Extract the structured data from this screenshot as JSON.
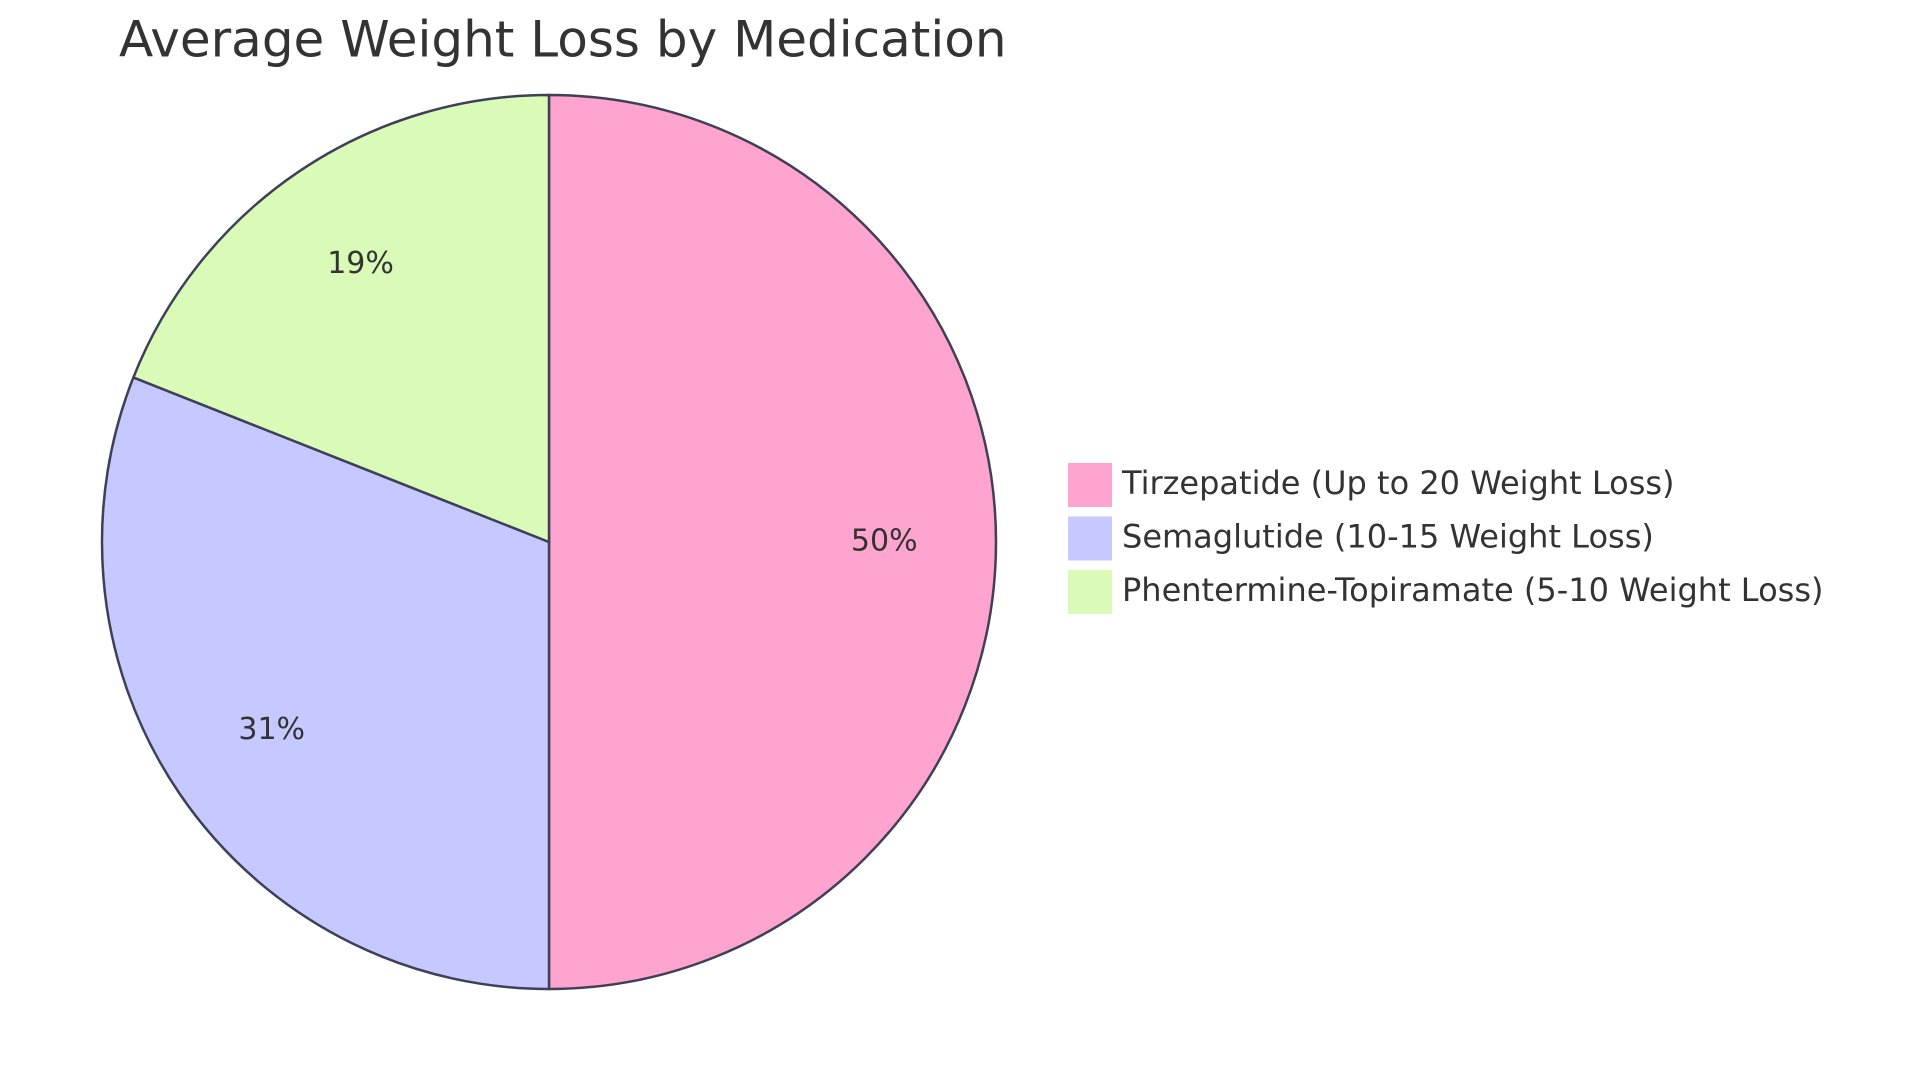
{
  "chart_data": {
    "type": "pie",
    "title": "Average Weight Loss by Medication",
    "categories": [
      "Tirzepatide (Up to 20 Weight Loss)",
      "Semaglutide (10-15 Weight Loss)",
      "Phentermine-Topiramate (5-10 Weight Loss)"
    ],
    "values": [
      50,
      31,
      19
    ],
    "value_labels": [
      "50%",
      "31%",
      "19%"
    ],
    "colors": [
      "#ffa4ce",
      "#c6c9ff",
      "#dafbb8"
    ],
    "legend": "right"
  }
}
